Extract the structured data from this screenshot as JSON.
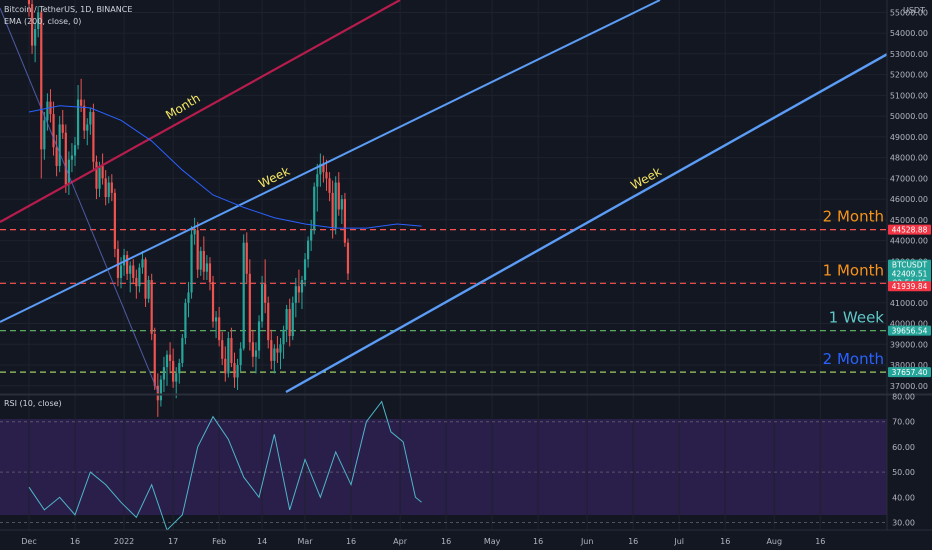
{
  "header": {
    "symbol_line": "Bitcoin / TetherUS, 1D, BINANCE",
    "ema_line": "EMA (200, close, 0)",
    "rsi_line": "RSI (10, close)",
    "currency": "USDT"
  },
  "price_axis": {
    "labels": [
      "55000.00",
      "54000.00",
      "53000.00",
      "52000.00",
      "51000.00",
      "50000.00",
      "49000.00",
      "48000.00",
      "47000.00",
      "46000.00",
      "45000.00",
      "44000.00",
      "43000.00",
      "42000.00",
      "41000.00",
      "40000.00",
      "39000.00",
      "38000.00",
      "37000.00"
    ],
    "values": [
      55000,
      54000,
      53000,
      52000,
      51000,
      50000,
      49000,
      48000,
      47000,
      46000,
      45000,
      44000,
      43000,
      42000,
      41000,
      40000,
      39000,
      38000,
      37000
    ]
  },
  "rsi_axis": {
    "labels": [
      "80.00",
      "70.00",
      "60.00",
      "50.00",
      "40.00",
      "30.00"
    ],
    "values": [
      80,
      70,
      60,
      50,
      40,
      30
    ]
  },
  "time_axis": {
    "labels": [
      "Dec",
      "16",
      "2022",
      "17",
      "Feb",
      "14",
      "Mar",
      "16",
      "Apr",
      "16",
      "May",
      "16",
      "Jun",
      "16",
      "Jul",
      "16",
      "Aug",
      "16"
    ],
    "days": [
      0,
      15,
      31,
      47,
      62,
      76,
      90,
      105,
      121,
      136,
      151,
      166,
      182,
      197,
      212,
      227,
      243,
      258
    ]
  },
  "price_tags": [
    {
      "label": "44528.88",
      "value": 44528.88,
      "color": "#f23645"
    },
    {
      "label": "BTCUSDT",
      "value": 42409.51,
      "color": "#26a69a",
      "offset": -9
    },
    {
      "label": "42409.51",
      "value": 42409.51,
      "color": "#26a69a"
    },
    {
      "label": "02:54:45",
      "value": 42409.51,
      "color": "#26a69a",
      "offset": 9
    },
    {
      "label": "41939.84",
      "value": 41800,
      "color": "#f23645"
    },
    {
      "label": "39656.54",
      "value": 39656.54,
      "color": "#26a69a"
    },
    {
      "label": "37657.40",
      "value": 37657.4,
      "color": "#26a69a"
    }
  ],
  "levels": [
    {
      "label": "2 Month",
      "value": 44528.88,
      "color": "#ff5252",
      "text_color": "#f7931a"
    },
    {
      "label": "1 Month",
      "value": 41939.84,
      "color": "#ff5252",
      "text_color": "#f7931a"
    },
    {
      "label": "1 Week",
      "value": 39656.54,
      "color": "#66bb6a",
      "text_color": "#5ec8c8"
    },
    {
      "label": "2 Month",
      "value": 37657.4,
      "color": "#9ccc65",
      "text_color": "#2962ff"
    }
  ],
  "trendlines": [
    {
      "label": "Month",
      "color": "#b71c4c"
    },
    {
      "label": "Week",
      "color": "#5b9cf6"
    },
    {
      "label": "Week",
      "color": "#5b9cf6"
    }
  ],
  "colors": {
    "up": "#26a69a",
    "down": "#ef5350",
    "ema": "#2962ff",
    "rsi": "#7e57c2",
    "rsi_band": "#2a1e4a"
  },
  "chart_data": {
    "type": "candlestick",
    "symbol": "BTCUSDT",
    "interval": "1D",
    "last_price": 42409.51,
    "ylim": [
      36700,
      55600
    ],
    "series": [
      {
        "name": "EMA (200, close, 0)",
        "type": "line",
        "days": [
          0,
          10,
          20,
          30,
          40,
          50,
          60,
          70,
          80,
          90,
          100,
          110,
          120,
          128
        ],
        "values": [
          50200,
          50500,
          50400,
          49800,
          48800,
          47400,
          46200,
          45600,
          45100,
          44800,
          44600,
          44600,
          44800,
          44700
        ]
      },
      {
        "name": "RSI (10, close)",
        "type": "line",
        "ylim": [
          27,
          81
        ],
        "days": [
          0,
          5,
          10,
          15,
          20,
          25,
          30,
          35,
          40,
          45,
          50,
          55,
          60,
          65,
          70,
          75,
          80,
          85,
          90,
          95,
          100,
          105,
          110,
          115,
          118,
          122,
          126,
          128
        ],
        "values": [
          44,
          35,
          40,
          33,
          50,
          45,
          38,
          32,
          45,
          27,
          33,
          60,
          72,
          63,
          48,
          40,
          65,
          35,
          55,
          40,
          58,
          45,
          70,
          78,
          66,
          62,
          40,
          38
        ]
      }
    ],
    "candles": {
      "start_day": 0,
      "ohlc": [
        [
          56000,
          57200,
          54800,
          55400
        ],
        [
          55400,
          55900,
          53000,
          53400
        ],
        [
          53400,
          54500,
          52600,
          54200
        ],
        [
          54200,
          55300,
          53800,
          55000
        ],
        [
          55000,
          55100,
          47000,
          48400
        ],
        [
          48400,
          50200,
          47900,
          49800
        ],
        [
          49800,
          51100,
          49300,
          50700
        ],
        [
          50700,
          51300,
          49700,
          50100
        ],
        [
          50100,
          50700,
          48100,
          48500
        ],
        [
          48500,
          49100,
          47100,
          47600
        ],
        [
          47600,
          50000,
          47300,
          49600
        ],
        [
          49600,
          50300,
          48900,
          49200
        ],
        [
          49200,
          49600,
          46300,
          46700
        ],
        [
          46700,
          48300,
          46200,
          47900
        ],
        [
          47900,
          48700,
          47300,
          48100
        ],
        [
          48100,
          49000,
          47600,
          48600
        ],
        [
          48600,
          51500,
          48400,
          50800
        ],
        [
          50800,
          51800,
          50200,
          50500
        ],
        [
          50500,
          50800,
          48900,
          49300
        ],
        [
          49300,
          49900,
          48600,
          49600
        ],
        [
          49600,
          50400,
          49100,
          50200
        ],
        [
          50200,
          50600,
          47400,
          47800
        ],
        [
          47800,
          48100,
          46000,
          46500
        ],
        [
          46500,
          47800,
          46100,
          47600
        ],
        [
          47600,
          48200,
          46700,
          47000
        ],
        [
          47000,
          47400,
          45700,
          46100
        ],
        [
          46100,
          47100,
          45800,
          46800
        ],
        [
          46800,
          47200,
          45900,
          46300
        ],
        [
          46300,
          46500,
          43200,
          43600
        ],
        [
          43600,
          44000,
          41800,
          42200
        ],
        [
          42200,
          43200,
          41700,
          42800
        ],
        [
          42800,
          43600,
          42300,
          43300
        ],
        [
          43300,
          43500,
          42100,
          42400
        ],
        [
          42400,
          43000,
          41500,
          42800
        ],
        [
          42800,
          43100,
          41900,
          42200
        ],
        [
          42200,
          42600,
          41200,
          41800
        ],
        [
          41800,
          42900,
          41500,
          42700
        ],
        [
          42700,
          43500,
          42400,
          43100
        ],
        [
          43100,
          43200,
          40800,
          41200
        ],
        [
          41200,
          42300,
          41000,
          42100
        ],
        [
          42100,
          42400,
          39200,
          39500
        ],
        [
          39500,
          39800,
          36800,
          37000
        ],
        [
          37000,
          37600,
          35500,
          36300
        ],
        [
          36300,
          37500,
          36000,
          37300
        ],
        [
          37300,
          38400,
          36700,
          37900
        ],
        [
          37900,
          38700,
          37000,
          38500
        ],
        [
          38500,
          39100,
          37600,
          38200
        ],
        [
          38200,
          38800,
          36900,
          37200
        ],
        [
          37200,
          37900,
          36400,
          37600
        ],
        [
          37600,
          38300,
          37100,
          38100
        ],
        [
          38100,
          39500,
          37900,
          39300
        ],
        [
          39300,
          41200,
          39000,
          41000
        ],
        [
          41000,
          42000,
          40300,
          41500
        ],
        [
          41500,
          44700,
          41200,
          44300
        ],
        [
          44300,
          45100,
          43800,
          44500
        ],
        [
          44500,
          44900,
          42200,
          42600
        ],
        [
          42600,
          43700,
          42300,
          43500
        ],
        [
          43500,
          44200,
          42100,
          42500
        ],
        [
          42500,
          43300,
          42100,
          42900
        ],
        [
          42900,
          43200,
          41600,
          42000
        ],
        [
          42000,
          42300,
          39800,
          40100
        ],
        [
          40100,
          40600,
          39300,
          40300
        ],
        [
          40300,
          40800,
          38900,
          39200
        ],
        [
          39200,
          39600,
          38000,
          38300
        ],
        [
          38300,
          38900,
          37200,
          37600
        ],
        [
          37600,
          39600,
          37400,
          39300
        ],
        [
          39300,
          39800,
          37900,
          38100
        ],
        [
          38100,
          38600,
          36900,
          37400
        ],
        [
          37400,
          38300,
          36800,
          38000
        ],
        [
          38000,
          39100,
          37700,
          38800
        ],
        [
          38800,
          44300,
          38700,
          43900
        ],
        [
          43900,
          44400,
          41900,
          42400
        ],
        [
          42400,
          43100,
          38700,
          39100
        ],
        [
          39100,
          39700,
          37900,
          38400
        ],
        [
          38400,
          39100,
          37600,
          38700
        ],
        [
          38700,
          40400,
          38300,
          40100
        ],
        [
          40100,
          42300,
          39800,
          41900
        ],
        [
          41900,
          43100,
          40500,
          41000
        ],
        [
          41000,
          41300,
          38800,
          39200
        ],
        [
          39200,
          39700,
          37800,
          38200
        ],
        [
          38200,
          39000,
          37600,
          38800
        ],
        [
          38800,
          39400,
          38100,
          38600
        ],
        [
          38600,
          39300,
          37800,
          39000
        ],
        [
          39000,
          39900,
          38300,
          39700
        ],
        [
          39700,
          40900,
          39100,
          40700
        ],
        [
          40700,
          41200,
          38900,
          39400
        ],
        [
          39400,
          41300,
          39200,
          41000
        ],
        [
          41000,
          42200,
          40300,
          41800
        ],
        [
          41800,
          42600,
          41000,
          41500
        ],
        [
          41500,
          42300,
          40700,
          42100
        ],
        [
          42100,
          43400,
          41800,
          43100
        ],
        [
          43100,
          44200,
          42700,
          44000
        ],
        [
          44000,
          45000,
          43500,
          44500
        ],
        [
          44500,
          46800,
          44300,
          46600
        ],
        [
          46600,
          47700,
          45400,
          47200
        ],
        [
          47200,
          48200,
          46600,
          47700
        ],
        [
          47700,
          48100,
          46800,
          47300
        ],
        [
          47300,
          47900,
          46400,
          47000
        ],
        [
          47000,
          47300,
          45900,
          46300
        ],
        [
          46300,
          46900,
          44100,
          44600
        ],
        [
          44600,
          47100,
          44300,
          46800
        ],
        [
          46800,
          47300,
          45200,
          45500
        ],
        [
          45500,
          46200,
          44800,
          46000
        ],
        [
          46000,
          46300,
          43700,
          43900
        ],
        [
          43900,
          44100,
          42100,
          42409.51
        ]
      ]
    }
  }
}
